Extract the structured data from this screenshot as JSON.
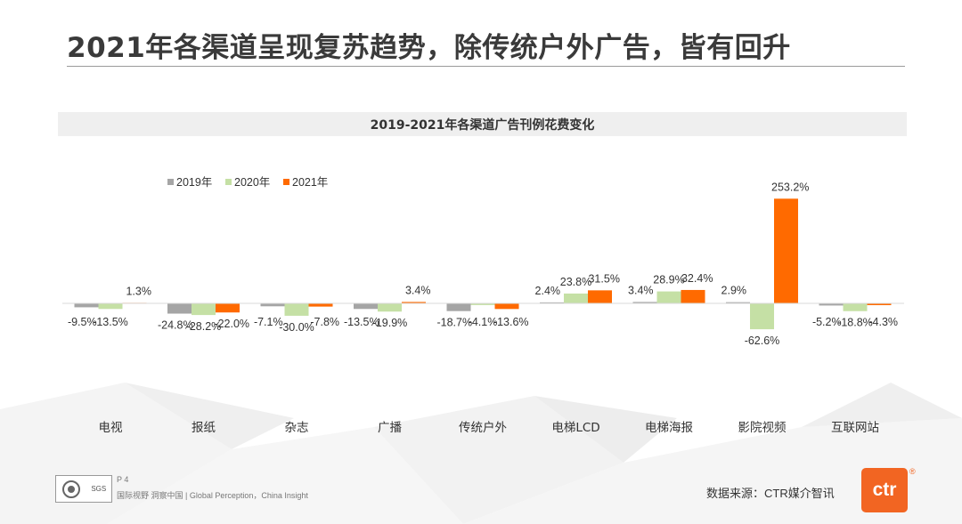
{
  "page": {
    "title": "2021年各渠道呈现复苏趋势，除传统户外广告，皆有回升",
    "page_number": "P 4",
    "slogan": "国际视野  洞察中国 | Global Perception，China Insight",
    "source": "数据来源：CTR媒介智讯",
    "brand_text": "ctr",
    "brand_mark": "®",
    "footer_logo_text": "SGS"
  },
  "colors": {
    "s2019": "#a5a5a5",
    "s2020": "#c5e0a5",
    "s2021": "#ff6a00",
    "axis": "#d9d9d9"
  },
  "chart_data": {
    "type": "bar",
    "title": "2019-2021年各渠道广告刊例花费变化",
    "categories": [
      "电视",
      "报纸",
      "杂志",
      "广播",
      "传统户外",
      "电梯LCD",
      "电梯海报",
      "影院视频",
      "互联网站"
    ],
    "series": [
      {
        "name": "2019年",
        "values": [
          -9.5,
          -24.8,
          -7.1,
          -13.5,
          -18.7,
          2.4,
          3.4,
          2.9,
          -5.2
        ],
        "labels": [
          "-9.5%",
          "-24.8%",
          "-7.1%",
          "-13.5%",
          "-18.7%",
          "2.4%",
          "3.4%",
          "2.9%",
          "-5.2%"
        ]
      },
      {
        "name": "2020年",
        "values": [
          -13.5,
          -28.2,
          -30.0,
          -19.9,
          -4.1,
          23.8,
          28.9,
          -62.6,
          -18.8
        ],
        "labels": [
          "-13.5%",
          "-28.2%",
          "-30.0%",
          "-19.9%",
          "-4.1%",
          "23.8%",
          "28.9%",
          "-62.6%",
          "-18.8%"
        ]
      },
      {
        "name": "2021年",
        "values": [
          1.3,
          -22.0,
          -7.8,
          3.4,
          -13.6,
          31.5,
          32.4,
          253.2,
          -4.3
        ],
        "labels": [
          "1.3%",
          "-22.0%",
          "-7.8%",
          "3.4%",
          "-13.6%",
          "31.5%",
          "32.4%",
          "253.2%",
          "-4.3%"
        ]
      }
    ],
    "unit": "%",
    "legend_position": "top-left",
    "grid": false
  }
}
